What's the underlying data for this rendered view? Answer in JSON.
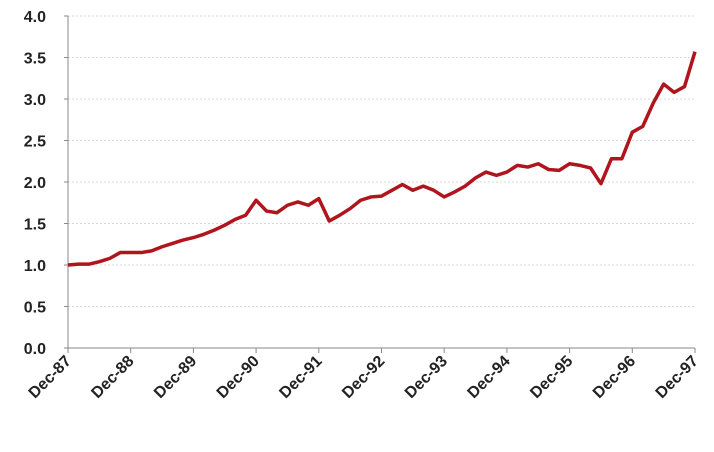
{
  "chart_data": {
    "type": "line",
    "categories": [
      "Dec-87",
      null,
      null,
      null,
      null,
      null,
      "Dec-88",
      null,
      null,
      null,
      null,
      null,
      "Dec-89",
      null,
      null,
      null,
      null,
      null,
      "Dec-90",
      null,
      null,
      null,
      null,
      null,
      "Dec-91",
      null,
      null,
      null,
      null,
      null,
      "Dec-92",
      null,
      null,
      null,
      null,
      null,
      "Dec-93",
      null,
      null,
      null,
      null,
      null,
      "Dec-94",
      null,
      null,
      null,
      null,
      null,
      "Dec-95",
      null,
      null,
      null,
      null,
      null,
      "Dec-96",
      null,
      null,
      null,
      null,
      null,
      "Dec-97"
    ],
    "series": [
      {
        "color": "#b0141c",
        "values": [
          1.0,
          1.01,
          1.01,
          1.04,
          1.08,
          1.15,
          1.15,
          1.15,
          1.17,
          1.22,
          1.26,
          1.3,
          1.33,
          1.37,
          1.42,
          1.48,
          1.55,
          1.6,
          1.78,
          1.65,
          1.63,
          1.72,
          1.76,
          1.72,
          1.8,
          1.53,
          1.6,
          1.68,
          1.78,
          1.82,
          1.83,
          1.9,
          1.97,
          1.9,
          1.95,
          1.9,
          1.82,
          1.88,
          1.95,
          2.05,
          2.12,
          2.08,
          2.12,
          2.2,
          2.18,
          2.22,
          2.15,
          2.14,
          2.22,
          2.2,
          2.17,
          1.98,
          2.28,
          2.28,
          2.6,
          2.67,
          2.95,
          3.18,
          3.08,
          3.15,
          3.57
        ]
      }
    ],
    "ylim": [
      0,
      4
    ],
    "yticks": [
      {
        "value": 0,
        "label": "0.0"
      },
      0.5,
      {
        "value": 1,
        "label": "1.0"
      },
      1.5,
      {
        "value": 2,
        "label": "2.0"
      },
      2.5,
      {
        "value": 3,
        "label": "3.0"
      },
      3.5,
      {
        "value": 4,
        "label": "4.0"
      }
    ],
    "grid": true
  }
}
